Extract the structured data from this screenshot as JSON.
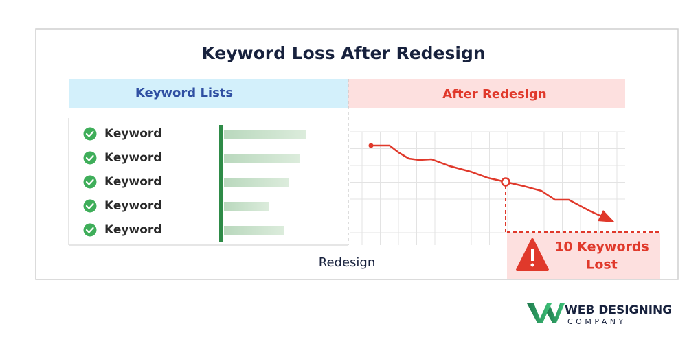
{
  "title": "Keyword Loss After Redesign",
  "left_header": "Keyword Lists",
  "right_header": "After Redesign",
  "keywords": [
    "Keyword",
    "Keyword",
    "Keyword",
    "Keyword",
    "Keyword"
  ],
  "x_label": "Redesign",
  "alert": [
    "10 Keywords",
    "Lost"
  ],
  "logo": {
    "name": "WEB DESIGNING",
    "sub": "COMPANY"
  }
}
